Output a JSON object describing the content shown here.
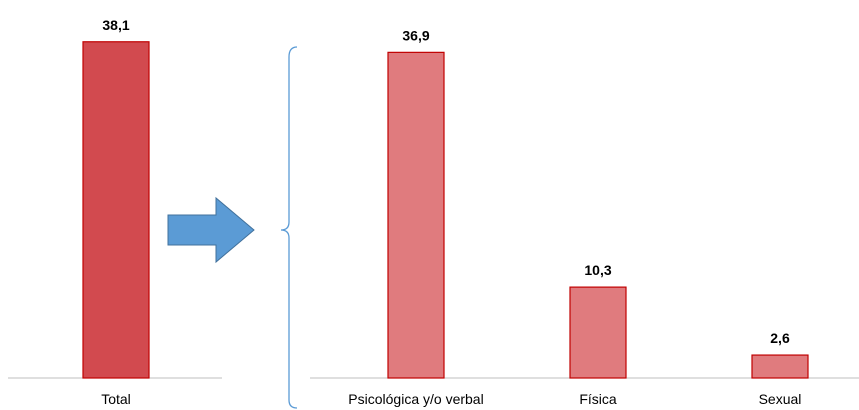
{
  "chart_data": [
    {
      "type": "bar",
      "categories": [
        "Total"
      ],
      "values": [
        38.1
      ],
      "value_labels": [
        "38,1"
      ],
      "ylim": [
        0,
        40
      ],
      "grid": false,
      "colors": {
        "fill": "#d24a4f",
        "stroke": "#c00000"
      }
    },
    {
      "type": "bar",
      "categories": [
        "Psicológica y/o verbal",
        "Física",
        "Sexual"
      ],
      "values": [
        36.9,
        10.3,
        2.6
      ],
      "value_labels": [
        "36,9",
        "10,3",
        "2,6"
      ],
      "ylim": [
        0,
        40
      ],
      "grid": false,
      "colors": {
        "fill": "#e07b7e",
        "stroke": "#c00000"
      }
    }
  ],
  "decorations": {
    "arrow_icon": "right-arrow-icon",
    "arrow_color": "#5b9bd5",
    "arrow_stroke": "#41719c",
    "brace_icon": "left-brace-icon",
    "brace_color": "#5b9bd5",
    "axis_color": "#bfbfbf"
  }
}
